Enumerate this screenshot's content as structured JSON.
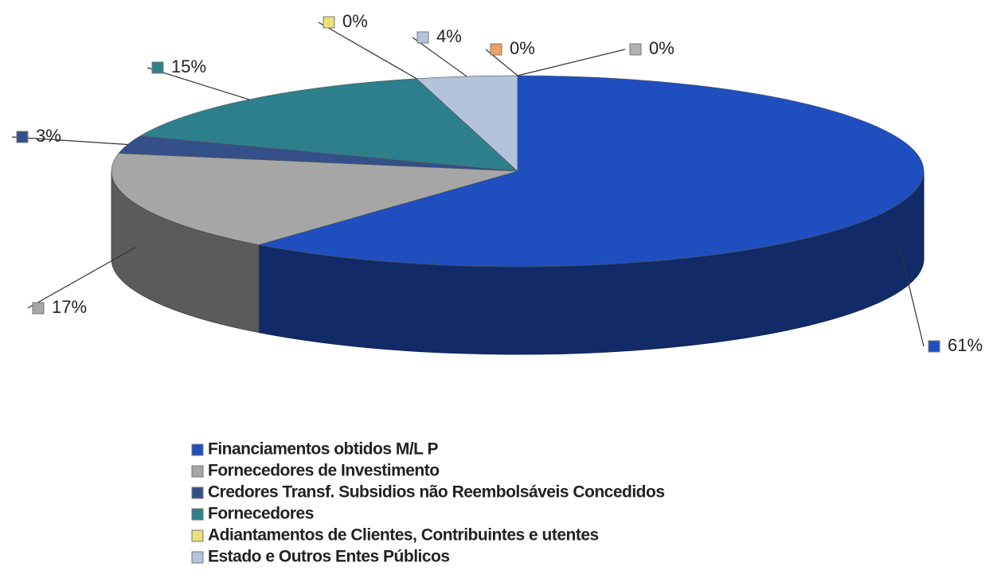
{
  "chart_data": {
    "type": "pie",
    "categories": [
      "Financiamentos obtidos M/L P",
      "Fornecedores de Investimento",
      "Credores Transf. Subsidios não Reembolsáveis Concedidos",
      "Fornecedores",
      "Adiantamentos de Clientes, Contribuintes e utentes",
      "Estado e Outros Entes Públicos",
      null,
      null
    ],
    "values": [
      61,
      17,
      3,
      15,
      0,
      4,
      0,
      0
    ],
    "value_labels": [
      "61%",
      "17%",
      "3%",
      "15%",
      "0%",
      "4%",
      "0%",
      "0%"
    ],
    "colors": [
      "#1f4fbf",
      "#a6a6a6",
      "#34508a",
      "#2e7f8c",
      "#e8e07a",
      "#b4c3dc",
      "#f0a060",
      "#b0b0b0"
    ],
    "legend": "bottom"
  }
}
